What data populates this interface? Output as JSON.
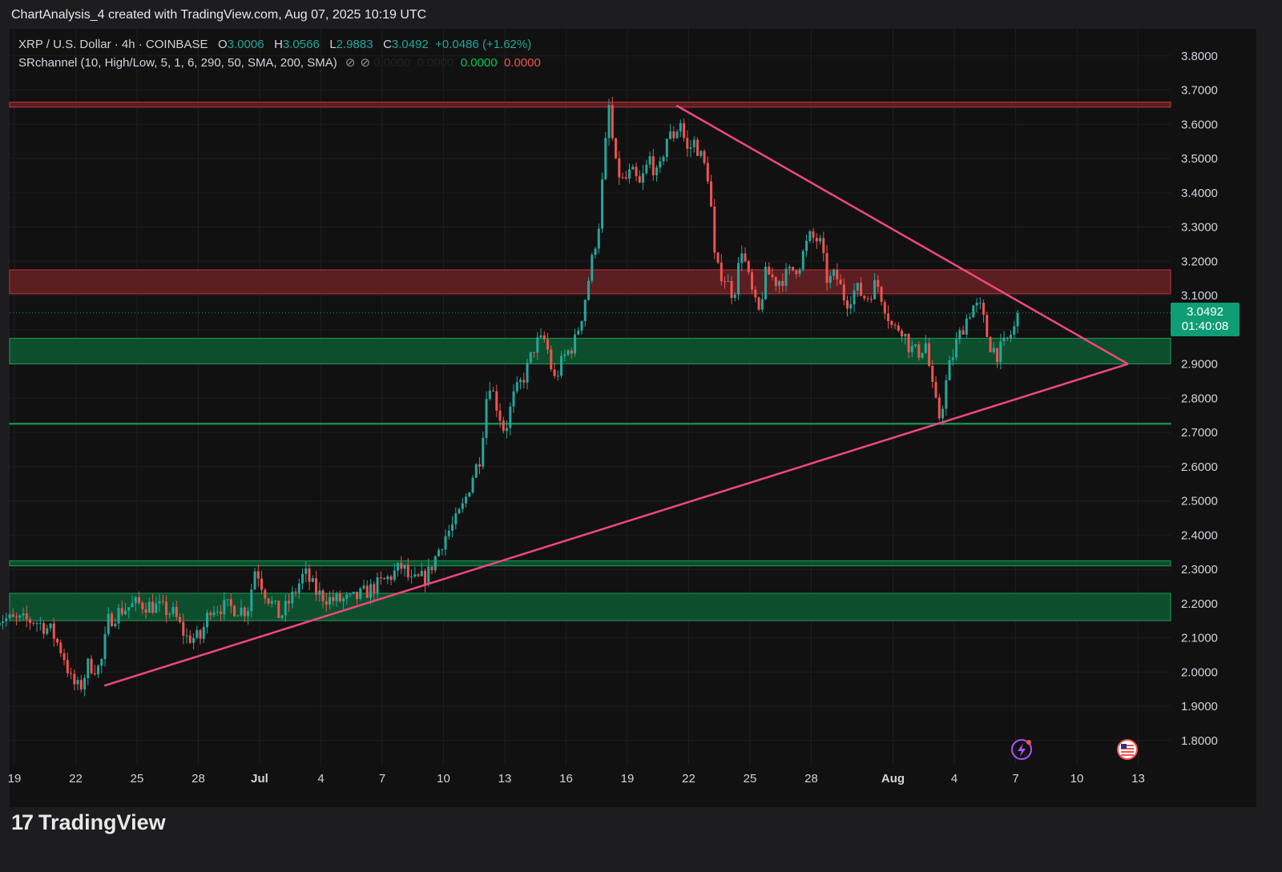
{
  "header": {
    "caption": "ChartAnalysis_4 created with TradingView.com, Aug 07, 2025 10:19 UTC"
  },
  "legend": {
    "symbol": "XRP / U.S. Dollar · 4h · COINBASE",
    "o_label": "O",
    "o_value": "3.0006",
    "h_label": "H",
    "h_value": "3.0566",
    "l_label": "L",
    "l_value": "2.9883",
    "c_label": "C",
    "c_value": "3.0492",
    "change": "+0.0486 (+1.62%)",
    "indicator": "SRchannel (10, High/Low, 5, 1, 6, 290, 50, SMA, 200, SMA)",
    "ind_v1": "0.0000",
    "ind_v2": "0.0000",
    "ind_v3": "0.0000",
    "ind_v4": "0.0000"
  },
  "price_tag": {
    "price": "3.0492",
    "countdown": "01:40:08"
  },
  "footer": {
    "brand": "TradingView",
    "logo_mark": "17"
  },
  "colors": {
    "up": "#26a69a",
    "down": "#ef5350",
    "trendline": "#f0487e",
    "support": "#0d4f2c",
    "resistance": "#5b1e21",
    "last": "#0f9d76"
  },
  "chart_data": {
    "type": "candlestick",
    "symbol": "XRP / U.S. Dollar",
    "interval": "4h",
    "exchange": "COINBASE",
    "y_ticks": [
      "1.8000",
      "1.9000",
      "2.0000",
      "2.1000",
      "2.2000",
      "2.3000",
      "2.4000",
      "2.5000",
      "2.6000",
      "2.7000",
      "2.8000",
      "2.9000",
      "3.0000",
      "3.1000",
      "3.2000",
      "3.3000",
      "3.4000",
      "3.5000",
      "3.6000",
      "3.7000",
      "3.8000"
    ],
    "ylim": [
      1.75,
      3.83
    ],
    "x_ticks": [
      {
        "label": "19",
        "day": -11
      },
      {
        "label": "22",
        "day": -8
      },
      {
        "label": "25",
        "day": -5
      },
      {
        "label": "28",
        "day": -2
      },
      {
        "label": "Jul",
        "day": 1
      },
      {
        "label": "4",
        "day": 4
      },
      {
        "label": "7",
        "day": 7
      },
      {
        "label": "10",
        "day": 10
      },
      {
        "label": "13",
        "day": 13
      },
      {
        "label": "16",
        "day": 16
      },
      {
        "label": "19",
        "day": 19
      },
      {
        "label": "22",
        "day": 22
      },
      {
        "label": "25",
        "day": 25
      },
      {
        "label": "28",
        "day": 28
      },
      {
        "label": "Aug",
        "day": 32
      },
      {
        "label": "4",
        "day": 35
      },
      {
        "label": "7",
        "day": 38
      },
      {
        "label": "10",
        "day": 41
      },
      {
        "label": "13",
        "day": 44
      }
    ],
    "last_price": 3.0492,
    "price_path": [
      [
        -11.9,
        2.16
      ],
      [
        -11,
        2.15
      ],
      [
        -10,
        2.15
      ],
      [
        -9.2,
        2.12
      ],
      [
        -8.6,
        2.05
      ],
      [
        -8.2,
        1.97
      ],
      [
        -7.8,
        1.95
      ],
      [
        -7.4,
        2.02
      ],
      [
        -6.8,
        2.01
      ],
      [
        -6.4,
        2.15
      ],
      [
        -5.8,
        2.18
      ],
      [
        -5,
        2.2
      ],
      [
        -4,
        2.19
      ],
      [
        -3.2,
        2.17
      ],
      [
        -2.6,
        2.1
      ],
      [
        -1.9,
        2.1
      ],
      [
        -1.4,
        2.19
      ],
      [
        -0.6,
        2.19
      ],
      [
        0.4,
        2.18
      ],
      [
        0.8,
        2.31
      ],
      [
        1.2,
        2.24
      ],
      [
        2,
        2.16
      ],
      [
        2.6,
        2.22
      ],
      [
        3.2,
        2.29
      ],
      [
        3.8,
        2.23
      ],
      [
        4.5,
        2.21
      ],
      [
        5.5,
        2.21
      ],
      [
        6.4,
        2.24
      ],
      [
        7.2,
        2.27
      ],
      [
        8,
        2.31
      ],
      [
        8.4,
        2.26
      ],
      [
        9.2,
        2.28
      ],
      [
        10,
        2.39
      ],
      [
        10.6,
        2.44
      ],
      [
        11,
        2.49
      ],
      [
        11.4,
        2.57
      ],
      [
        11.8,
        2.63
      ],
      [
        12.2,
        2.86
      ],
      [
        12.6,
        2.78
      ],
      [
        13,
        2.7
      ],
      [
        13.4,
        2.8
      ],
      [
        14,
        2.87
      ],
      [
        14.5,
        2.96
      ],
      [
        15,
        2.97
      ],
      [
        15.4,
        2.85
      ],
      [
        15.9,
        2.92
      ],
      [
        16.4,
        2.96
      ],
      [
        16.8,
        3.05
      ],
      [
        17.2,
        3.18
      ],
      [
        17.6,
        3.31
      ],
      [
        17.9,
        3.52
      ],
      [
        18.1,
        3.65
      ],
      [
        18.4,
        3.48
      ],
      [
        18.8,
        3.43
      ],
      [
        19.2,
        3.46
      ],
      [
        19.6,
        3.42
      ],
      [
        20.1,
        3.5
      ],
      [
        20.5,
        3.44
      ],
      [
        20.9,
        3.56
      ],
      [
        21.3,
        3.57
      ],
      [
        21.6,
        3.61
      ],
      [
        21.9,
        3.52
      ],
      [
        22.3,
        3.55
      ],
      [
        22.7,
        3.49
      ],
      [
        23,
        3.44
      ],
      [
        23.3,
        3.18
      ],
      [
        23.7,
        3.16
      ],
      [
        24.2,
        3.1
      ],
      [
        24.6,
        3.24
      ],
      [
        25,
        3.13
      ],
      [
        25.4,
        3.04
      ],
      [
        25.8,
        3.17
      ],
      [
        26.3,
        3.14
      ],
      [
        26.8,
        3.16
      ],
      [
        27.4,
        3.19
      ],
      [
        27.9,
        3.27
      ],
      [
        28.4,
        3.26
      ],
      [
        28.8,
        3.14
      ],
      [
        29.2,
        3.16
      ],
      [
        29.7,
        3.08
      ],
      [
        30.2,
        3.12
      ],
      [
        30.7,
        3.09
      ],
      [
        31.2,
        3.14
      ],
      [
        31.6,
        3.07
      ],
      [
        32,
        3.0
      ],
      [
        32.4,
        3.01
      ],
      [
        32.8,
        2.95
      ],
      [
        33.2,
        2.93
      ],
      [
        33.6,
        2.96
      ],
      [
        34,
        2.8
      ],
      [
        34.3,
        2.74
      ],
      [
        34.7,
        2.88
      ],
      [
        35.1,
        2.96
      ],
      [
        35.5,
        3.02
      ],
      [
        35.9,
        3.07
      ],
      [
        36.3,
        3.06
      ],
      [
        36.7,
        2.96
      ],
      [
        37.1,
        2.93
      ],
      [
        37.5,
        2.96
      ],
      [
        37.9,
        3.0
      ],
      [
        38.2,
        3.0492
      ]
    ],
    "trendlines": [
      {
        "name": "ascending-support",
        "points": [
          [
            -6.6,
            1.96
          ],
          [
            43.5,
            2.9
          ]
        ]
      },
      {
        "name": "descending-resistance",
        "points": [
          [
            21.4,
            3.655
          ],
          [
            43.5,
            2.9
          ]
        ]
      }
    ],
    "zones": [
      {
        "kind": "resistance",
        "from": 3.65,
        "to": 3.665
      },
      {
        "kind": "resistance",
        "from": 3.105,
        "to": 3.175
      },
      {
        "kind": "support",
        "from": 2.9,
        "to": 2.975
      },
      {
        "kind": "support-line",
        "from": 2.724,
        "to": 2.727
      },
      {
        "kind": "support",
        "from": 2.31,
        "to": 2.325
      },
      {
        "kind": "support",
        "from": 2.15,
        "to": 2.23
      }
    ]
  }
}
